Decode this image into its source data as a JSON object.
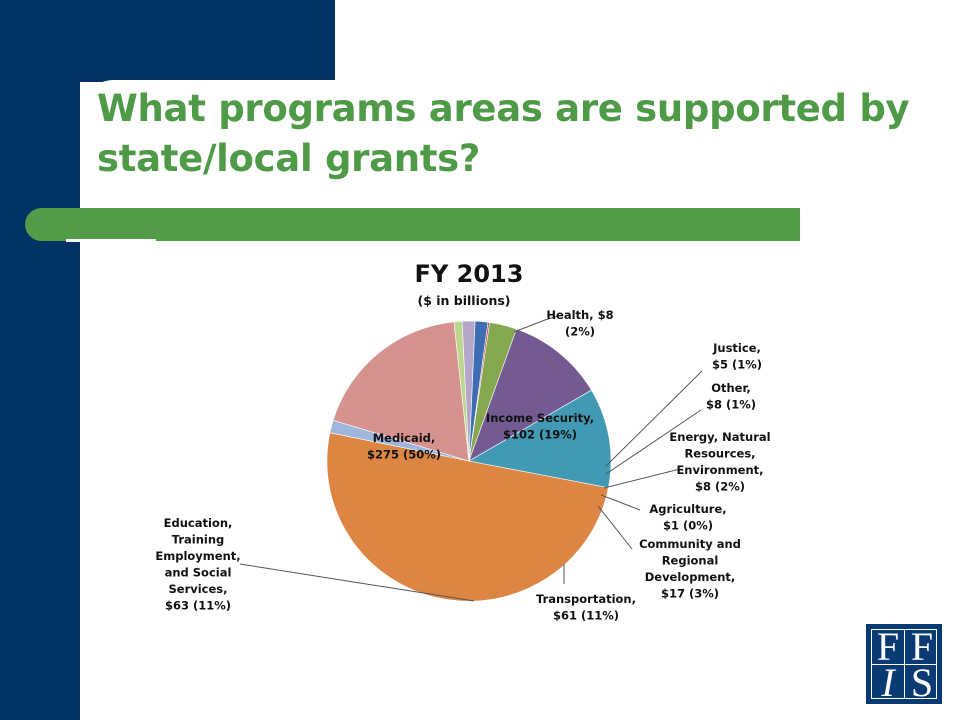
{
  "slide": {
    "title": "What programs areas are supported by state/local grants?"
  },
  "logo": {
    "letters": [
      "F",
      "F",
      "I",
      "S"
    ]
  },
  "chart_data": {
    "type": "pie",
    "title": "FY 2013",
    "subtitle": "($ in billions)",
    "slices": [
      {
        "name": "Medicaid",
        "value": 275,
        "pct": "50%",
        "label_lines": [
          "Medicaid,",
          "$275  (50%)"
        ],
        "color": "#dd8644"
      },
      {
        "name": "Health",
        "value": 8,
        "pct": "2%",
        "label_lines": [
          "Health, $8",
          "(2%)"
        ],
        "color": "#9eb6dc"
      },
      {
        "name": "Income Security",
        "value": 102,
        "pct": "19%",
        "label_lines": [
          "Income Security,",
          "$102  (19%)"
        ],
        "color": "#d6928f"
      },
      {
        "name": "Justice",
        "value": 5,
        "pct": "1%",
        "label_lines": [
          "Justice,",
          "$5 (1%)"
        ],
        "color": "#bcd68e"
      },
      {
        "name": "Other",
        "value": 8,
        "pct": "1%",
        "label_lines": [
          "Other,",
          "$8 (1%)"
        ],
        "color": "#b5a6c9"
      },
      {
        "name": "Energy, Natural Resources, Environment",
        "value": 8,
        "pct": "2%",
        "label_lines": [
          "Energy, Natural",
          "Resources,",
          "Environment,",
          "$8 (2%)"
        ],
        "color": "#3e6db3"
      },
      {
        "name": "Agriculture",
        "value": 1,
        "pct": "0%",
        "label_lines": [
          "Agriculture,",
          "$1 (0%)"
        ],
        "color": "#b2423f"
      },
      {
        "name": "Community and Regional Development",
        "value": 17,
        "pct": "3%",
        "label_lines": [
          "Community and",
          "Regional",
          "Development,",
          "$17 (3%)"
        ],
        "color": "#85a74e"
      },
      {
        "name": "Transportation",
        "value": 61,
        "pct": "11%",
        "label_lines": [
          "Transportation,",
          "$61 (11%)"
        ],
        "color": "#735a92"
      },
      {
        "name": "Education, Training Employment, and Social Services",
        "value": 63,
        "pct": "11%",
        "label_lines": [
          "Education,",
          "Training",
          "Employment,",
          "and Social",
          "Services,",
          "$63 (11%)"
        ],
        "color": "#4299b3"
      }
    ]
  }
}
